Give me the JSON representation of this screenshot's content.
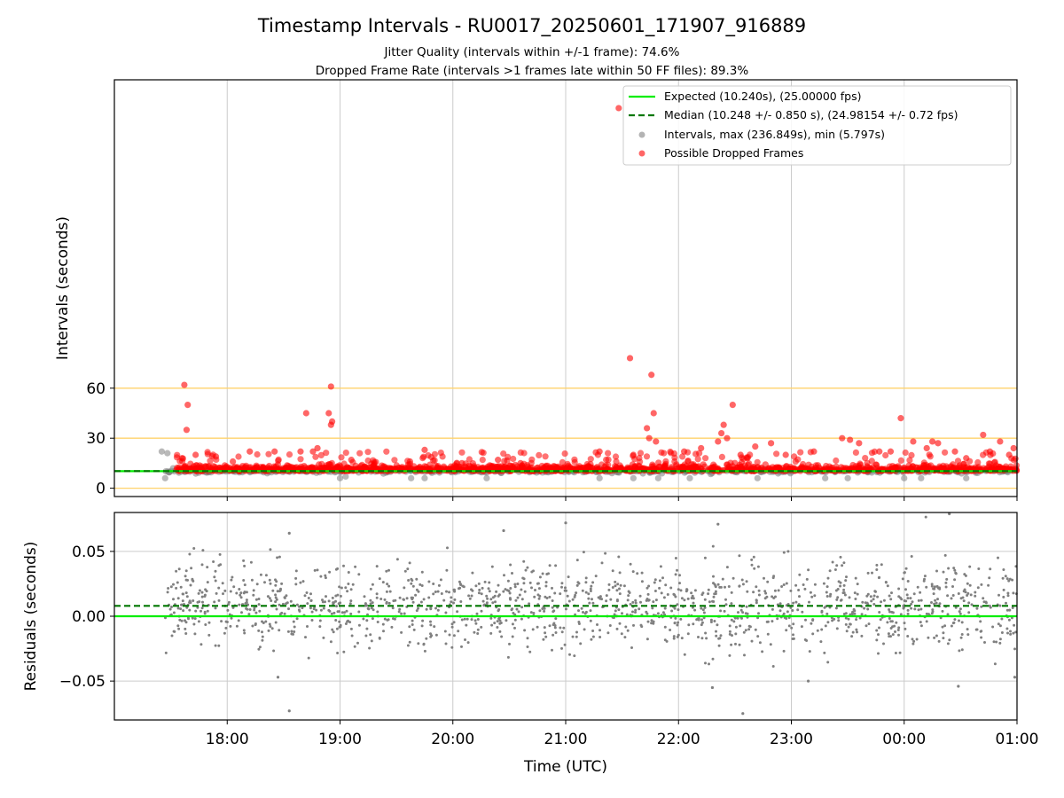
{
  "chart_data": {
    "type": "scatter",
    "title": "Timestamp Intervals - RU0017_20250601_171907_916889",
    "subtitle_lines": [
      "Jitter Quality (intervals within +/-1 frame): 74.6%",
      "Dropped Frame Rate (intervals >1 frames late within 50 FF files): 89.3%"
    ],
    "xlabel": "Time (UTC)",
    "x_tick_labels": [
      "18:00",
      "19:00",
      "20:00",
      "21:00",
      "22:00",
      "23:00",
      "00:00",
      "01:00"
    ],
    "x_tick_hours": [
      18,
      19,
      20,
      21,
      22,
      23,
      24,
      25
    ],
    "xlim_hours": [
      17.0,
      25.0
    ],
    "data_start_hour": 17.45,
    "x_grid": true,
    "colors": {
      "expected": "#00ee00",
      "median": "#007700",
      "intervals": "#808080",
      "dropped": "#ff0000",
      "guide_lines": "#ffd26b",
      "grid": "#cccccc"
    },
    "top_panel": {
      "ylabel": "Intervals (seconds)",
      "ylim": [
        -5,
        245
      ],
      "y_ticks": [
        0,
        30,
        60
      ],
      "y_tick_labels": [
        "0",
        "30",
        "60"
      ],
      "horizontal_guides": [
        0,
        30,
        60
      ],
      "expected_interval": 10.24,
      "median_interval": 10.248,
      "legend_position": "top-right",
      "legend": [
        {
          "label": "Expected (10.240s), (25.00000 fps)",
          "kind": "solid-line",
          "color": "#00ee00"
        },
        {
          "label": "Median (10.248 +/- 0.850 s), (24.98154 +/- 0.72 fps)",
          "kind": "dashed-line",
          "color": "#007700"
        },
        {
          "label": "Intervals, max (236.849s), min (5.797s)",
          "kind": "point",
          "color": "#808080"
        },
        {
          "label": "Possible Dropped Frames",
          "kind": "point",
          "color": "#ff0000"
        }
      ],
      "dropped_outliers": [
        {
          "x": 17.62,
          "y": 62
        },
        {
          "x": 17.65,
          "y": 50
        },
        {
          "x": 17.64,
          "y": 35
        },
        {
          "x": 17.6,
          "y": 18
        },
        {
          "x": 17.72,
          "y": 20
        },
        {
          "x": 17.9,
          "y": 19
        },
        {
          "x": 18.05,
          "y": 16
        },
        {
          "x": 18.2,
          "y": 22
        },
        {
          "x": 18.42,
          "y": 22
        },
        {
          "x": 18.65,
          "y": 22
        },
        {
          "x": 18.7,
          "y": 45
        },
        {
          "x": 18.76,
          "y": 22
        },
        {
          "x": 18.8,
          "y": 24
        },
        {
          "x": 18.9,
          "y": 45
        },
        {
          "x": 18.92,
          "y": 61
        },
        {
          "x": 18.93,
          "y": 40
        },
        {
          "x": 18.92,
          "y": 38
        },
        {
          "x": 19.1,
          "y": 17
        },
        {
          "x": 19.3,
          "y": 14
        },
        {
          "x": 19.75,
          "y": 23
        },
        {
          "x": 19.62,
          "y": 16
        },
        {
          "x": 20.08,
          "y": 15
        },
        {
          "x": 20.4,
          "y": 17
        },
        {
          "x": 20.6,
          "y": 15
        },
        {
          "x": 21.3,
          "y": 22
        },
        {
          "x": 21.47,
          "y": 228
        },
        {
          "x": 21.57,
          "y": 78
        },
        {
          "x": 21.6,
          "y": 20
        },
        {
          "x": 21.72,
          "y": 36
        },
        {
          "x": 21.74,
          "y": 30
        },
        {
          "x": 21.76,
          "y": 68
        },
        {
          "x": 21.78,
          "y": 45
        },
        {
          "x": 21.8,
          "y": 28
        },
        {
          "x": 22.05,
          "y": 22
        },
        {
          "x": 22.2,
          "y": 24
        },
        {
          "x": 22.35,
          "y": 28
        },
        {
          "x": 22.38,
          "y": 33
        },
        {
          "x": 22.4,
          "y": 38
        },
        {
          "x": 22.43,
          "y": 30
        },
        {
          "x": 22.48,
          "y": 50
        },
        {
          "x": 22.55,
          "y": 20
        },
        {
          "x": 22.68,
          "y": 25
        },
        {
          "x": 22.82,
          "y": 27
        },
        {
          "x": 22.95,
          "y": 20
        },
        {
          "x": 23.2,
          "y": 22
        },
        {
          "x": 23.45,
          "y": 30
        },
        {
          "x": 23.52,
          "y": 29
        },
        {
          "x": 23.6,
          "y": 27
        },
        {
          "x": 23.78,
          "y": 22
        },
        {
          "x": 23.88,
          "y": 22
        },
        {
          "x": 23.97,
          "y": 42
        },
        {
          "x": 24.08,
          "y": 28
        },
        {
          "x": 24.2,
          "y": 24
        },
        {
          "x": 24.25,
          "y": 28
        },
        {
          "x": 24.3,
          "y": 27
        },
        {
          "x": 24.45,
          "y": 22
        },
        {
          "x": 24.55,
          "y": 18
        },
        {
          "x": 24.7,
          "y": 32
        },
        {
          "x": 24.76,
          "y": 22
        },
        {
          "x": 24.85,
          "y": 28
        },
        {
          "x": 24.93,
          "y": 20
        },
        {
          "x": 24.97,
          "y": 24
        }
      ],
      "interval_outliers": [
        {
          "x": 17.42,
          "y": 22
        },
        {
          "x": 17.47,
          "y": 21
        },
        {
          "x": 17.45,
          "y": 6
        },
        {
          "x": 17.52,
          "y": 12
        },
        {
          "x": 19.0,
          "y": 6
        },
        {
          "x": 19.05,
          "y": 7
        },
        {
          "x": 19.75,
          "y": 6
        },
        {
          "x": 19.63,
          "y": 6
        },
        {
          "x": 20.3,
          "y": 6
        },
        {
          "x": 21.3,
          "y": 6
        },
        {
          "x": 21.6,
          "y": 6
        },
        {
          "x": 21.82,
          "y": 6
        },
        {
          "x": 22.1,
          "y": 6
        },
        {
          "x": 22.7,
          "y": 6
        },
        {
          "x": 23.3,
          "y": 6
        },
        {
          "x": 23.5,
          "y": 6
        },
        {
          "x": 24.0,
          "y": 6
        },
        {
          "x": 24.15,
          "y": 6
        },
        {
          "x": 24.55,
          "y": 6
        }
      ]
    },
    "bottom_panel": {
      "ylabel": "Residuals (seconds)",
      "ylim": [
        -0.08,
        0.08
      ],
      "y_ticks": [
        -0.05,
        0.0,
        0.05
      ],
      "y_tick_labels": [
        "−0.05",
        "0.00",
        "0.05"
      ],
      "y_grid": true,
      "expected_residual": 0.0,
      "median_residual": 0.008,
      "residual_outliers": [
        {
          "x": 18.55,
          "y": -0.073
        },
        {
          "x": 18.45,
          "y": -0.047
        },
        {
          "x": 21.0,
          "y": 0.072
        },
        {
          "x": 22.35,
          "y": 0.071
        },
        {
          "x": 22.57,
          "y": -0.075
        },
        {
          "x": 23.15,
          "y": -0.05
        },
        {
          "x": 24.4,
          "y": 0.079
        },
        {
          "x": 24.48,
          "y": -0.054
        },
        {
          "x": 24.98,
          "y": -0.047
        },
        {
          "x": 20.45,
          "y": 0.066
        },
        {
          "x": 18.55,
          "y": 0.064
        },
        {
          "x": 22.3,
          "y": -0.055
        }
      ]
    }
  }
}
